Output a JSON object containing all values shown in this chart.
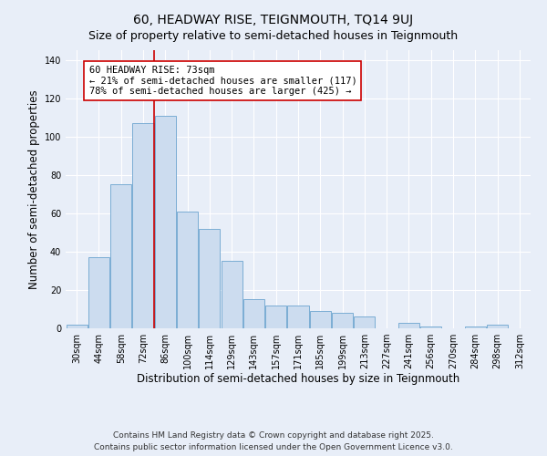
{
  "title": "60, HEADWAY RISE, TEIGNMOUTH, TQ14 9UJ",
  "subtitle": "Size of property relative to semi-detached houses in Teignmouth",
  "bar_labels": [
    "30sqm",
    "44sqm",
    "58sqm",
    "72sqm",
    "86sqm",
    "100sqm",
    "114sqm",
    "129sqm",
    "143sqm",
    "157sqm",
    "171sqm",
    "185sqm",
    "199sqm",
    "213sqm",
    "227sqm",
    "241sqm",
    "256sqm",
    "270sqm",
    "284sqm",
    "298sqm",
    "312sqm"
  ],
  "bar_values": [
    2,
    37,
    75,
    107,
    111,
    61,
    52,
    35,
    15,
    12,
    12,
    9,
    8,
    6,
    0,
    3,
    1,
    0,
    1,
    2,
    0
  ],
  "bar_color": "#ccdcef",
  "bar_edge_color": "#7badd4",
  "highlight_line_index": 3,
  "highlight_line_color": "#cc0000",
  "annotation_text": "60 HEADWAY RISE: 73sqm\n← 21% of semi-detached houses are smaller (117)\n78% of semi-detached houses are larger (425) →",
  "annotation_box_color": "#ffffff",
  "annotation_box_edge_color": "#cc0000",
  "xlabel": "Distribution of semi-detached houses by size in Teignmouth",
  "ylabel": "Number of semi-detached properties",
  "ylim": [
    0,
    145
  ],
  "yticks": [
    0,
    20,
    40,
    60,
    80,
    100,
    120,
    140
  ],
  "footer_line1": "Contains HM Land Registry data © Crown copyright and database right 2025.",
  "footer_line2": "Contains public sector information licensed under the Open Government Licence v3.0.",
  "background_color": "#e8eef8",
  "grid_color": "#ffffff",
  "title_fontsize": 10,
  "subtitle_fontsize": 9,
  "axis_label_fontsize": 8.5,
  "tick_fontsize": 7,
  "annotation_fontsize": 7.5,
  "footer_fontsize": 6.5
}
